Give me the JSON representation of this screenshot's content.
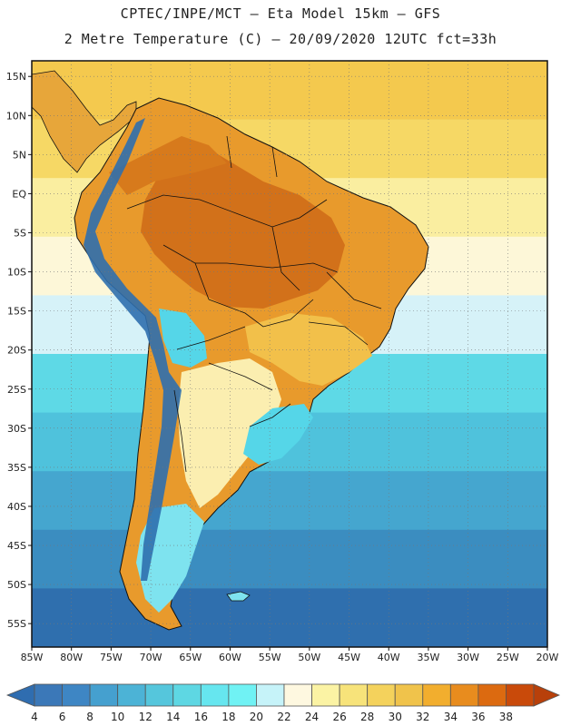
{
  "header": {
    "line1": "CPTEC/INPE/MCT –  Eta Model 15km – GFS",
    "line2": "2 Metre Temperature (C) – 20/09/2020 12UTC fct=33h"
  },
  "map": {
    "lat_labels": [
      "15N",
      "10N",
      "5N",
      "EQ",
      "5S",
      "10S",
      "15S",
      "20S",
      "25S",
      "30S",
      "35S",
      "40S",
      "45S",
      "50S",
      "55S"
    ],
    "lon_labels": [
      "85W",
      "80W",
      "75W",
      "70W",
      "65W",
      "60W",
      "55W",
      "50W",
      "45W",
      "40W",
      "35W",
      "30W",
      "25W",
      "20W"
    ],
    "lon_range": [
      -85,
      -20
    ],
    "lat_range": [
      17,
      -58
    ],
    "ocean_band_colors": [
      "#f4c94e",
      "#f6d865",
      "#faeea0",
      "#fdf7d8",
      "#d6f2f8",
      "#5ed9e6",
      "#4fc2dc",
      "#45a6cf",
      "#3b8dc0",
      "#2f6fae"
    ],
    "land_colors": {
      "hot": "#d2711a",
      "warm": "#e89a2c",
      "mild": "#f2c04a",
      "cool": "#fbeeb0",
      "cold": "#55d6e8",
      "andes": "#2f6fae"
    }
  },
  "colorbar": {
    "labels": [
      "4",
      "6",
      "8",
      "10",
      "12",
      "14",
      "16",
      "18",
      "20",
      "22",
      "24",
      "26",
      "28",
      "30",
      "32",
      "34",
      "36",
      "38"
    ],
    "colors": [
      "#3b78b8",
      "#3e86c4",
      "#45a0cf",
      "#4cb3d6",
      "#55c6dc",
      "#5ed7e3",
      "#66e6ef",
      "#70f2f4",
      "#c6f3f9",
      "#fef8e0",
      "#fbf3a4",
      "#f7e37a",
      "#f4d25c",
      "#f0c34b",
      "#f2ae2e",
      "#e88c1e",
      "#dc6a10",
      "#c94a0a"
    ],
    "low_color": "#2f6db0",
    "high_color": "#b8400a"
  }
}
